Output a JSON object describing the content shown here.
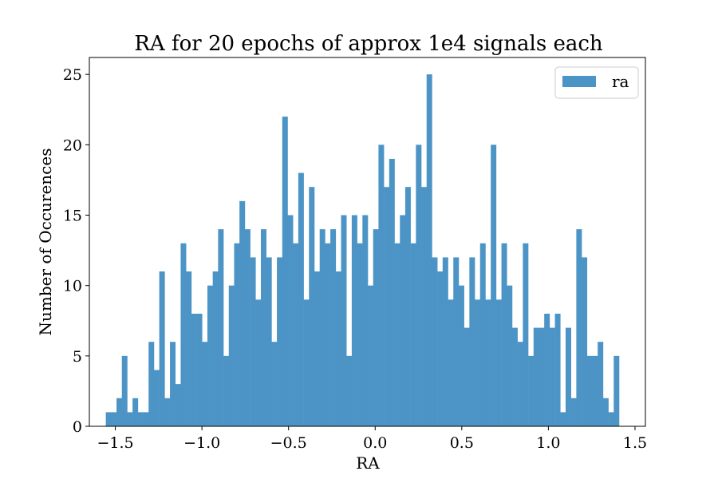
{
  "chart_data": {
    "type": "bar",
    "title": "RA for 20 epochs of approx 1e4 signals each",
    "xlabel": "RA",
    "ylabel": "Number of Occurences",
    "xlim": [
      -1.65,
      1.56
    ],
    "ylim": [
      0,
      26.2
    ],
    "xticks": [
      -1.5,
      -1.0,
      -0.5,
      0.0,
      0.5,
      1.0,
      1.5
    ],
    "xtick_labels": [
      "−1.5",
      "−1.0",
      "−0.5",
      "0.0",
      "0.5",
      "1.0",
      "1.5"
    ],
    "yticks": [
      0,
      5,
      10,
      15,
      20,
      25
    ],
    "ytick_labels": [
      "0",
      "5",
      "10",
      "15",
      "20",
      "25"
    ],
    "bin_start": -1.555,
    "bin_end": 1.408,
    "legend_position": "upper-right",
    "grid": false,
    "series": [
      {
        "name": "ra",
        "color": "#4d94c6",
        "values": [
          1,
          1,
          2,
          5,
          1,
          2,
          1,
          1,
          6,
          4,
          11,
          2,
          6,
          3,
          13,
          11,
          8,
          8,
          6,
          10,
          11,
          14,
          5,
          10,
          13,
          16,
          14,
          12,
          9,
          14,
          12,
          6,
          12,
          22,
          15,
          13,
          18,
          9,
          17,
          11,
          14,
          13,
          14,
          11,
          15,
          5,
          15,
          13,
          15,
          10,
          14,
          20,
          17,
          19,
          13,
          15,
          17,
          13,
          20,
          17,
          25,
          12,
          11,
          12,
          9,
          12,
          10,
          7,
          12,
          9,
          13,
          9,
          20,
          9,
          13,
          10,
          7,
          6,
          13,
          5,
          7,
          7,
          8,
          7,
          8,
          1,
          7,
          2,
          14,
          12,
          5,
          5,
          6,
          2,
          1,
          5
        ],
        "bar_labels_note": ""
      }
    ]
  }
}
